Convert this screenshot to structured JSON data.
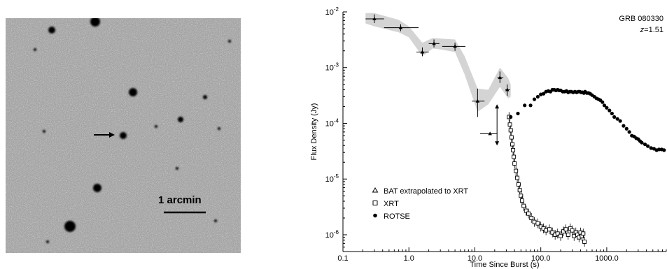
{
  "left_image": {
    "scale_bar_label": "1 arcmin"
  },
  "chart_data": {
    "type": "scatter",
    "title": "",
    "annotation": [
      "GRB 080330",
      "z=1.51"
    ],
    "xlabel": "Time Since Burst (s)",
    "ylabel": "Flux Density (Jy)",
    "xscale": "log",
    "yscale": "log",
    "xlim": [
      0.1,
      8000
    ],
    "ylim": [
      5e-07,
      0.01
    ],
    "x_tick_labels": [
      "0.1",
      "1.0",
      "10.0",
      "100.0",
      "1000.0"
    ],
    "x_tick_values": [
      0.1,
      1,
      10,
      100,
      1000
    ],
    "y_tick_labels": [
      "10^-6",
      "10^-5",
      "10^-4",
      "10^-3",
      "10^-2"
    ],
    "y_tick_values": [
      1e-06,
      1e-05,
      0.0001,
      0.001,
      0.01
    ],
    "legend": {
      "position": "bottom-left",
      "entries": [
        {
          "marker": "open-triangle",
          "label": "BAT extrapolated to XRT"
        },
        {
          "marker": "open-square",
          "label": "XRT"
        },
        {
          "marker": "filled-circle",
          "label": "ROTSE"
        }
      ]
    },
    "bat_band": {
      "x": [
        0.22,
        0.3,
        0.7,
        1.0,
        1.6,
        2.3,
        3.2,
        5.0,
        7.0,
        11.0,
        16.0,
        24.0,
        32.0,
        35.0
      ],
      "y_upper": [
        0.0095,
        0.0095,
        0.0072,
        0.0055,
        0.0028,
        0.0034,
        0.0033,
        0.0032,
        0.0016,
        0.00042,
        0.0004,
        0.001,
        0.00065,
        0.0005
      ],
      "y_lower": [
        0.0062,
        0.0055,
        0.0043,
        0.0035,
        0.0016,
        0.0022,
        0.0021,
        0.0019,
        0.00075,
        0.00016,
        0.00022,
        0.00045,
        0.00028,
        0.0003
      ]
    },
    "bat_points": [
      {
        "x": 0.3,
        "y": 0.0075,
        "xerr": [
          0.22,
          0.42
        ],
        "yerr": [
          0.0063,
          0.009
        ]
      },
      {
        "x": 0.75,
        "y": 0.0052,
        "xerr": [
          0.42,
          1.4
        ],
        "yerr": [
          0.0045,
          0.006
        ]
      },
      {
        "x": 1.6,
        "y": 0.0019,
        "xerr": [
          1.3,
          2.0
        ],
        "yerr": [
          0.0016,
          0.0023
        ]
      },
      {
        "x": 2.4,
        "y": 0.0027,
        "xerr": [
          2.0,
          2.9
        ],
        "yerr": [
          0.0023,
          0.0032
        ]
      },
      {
        "x": 5.0,
        "y": 0.0024,
        "xerr": [
          3.2,
          7.2
        ],
        "yerr": [
          0.002,
          0.0028
        ]
      },
      {
        "x": 11.0,
        "y": 0.00025,
        "xerr": [
          9.0,
          14.0
        ],
        "yerr": [
          0.00013,
          0.00042
        ]
      },
      {
        "x": 24.0,
        "y": 0.00066,
        "xerr": [
          22.0,
          27.0
        ],
        "yerr": [
          0.00053,
          0.00085
        ]
      },
      {
        "x": 31.0,
        "y": 0.0004,
        "xerr": [
          29.0,
          34.0
        ],
        "yerr": [
          0.00031,
          0.0005
        ]
      }
    ],
    "bat_limit": {
      "x": 17.0,
      "y": 6.5e-05,
      "xerr": [
        12.0,
        22.0
      ],
      "arrow_top": 0.00022,
      "arrow_bottom": 4e-05
    },
    "xrt_points": {
      "x": [
        33,
        34,
        35,
        36,
        37,
        38,
        39,
        40,
        42,
        44,
        46,
        48,
        50,
        52,
        55,
        60,
        65,
        72,
        80,
        90,
        100,
        110,
        120,
        135,
        150,
        165,
        180,
        200,
        220,
        240,
        260,
        280,
        300,
        320,
        340,
        360,
        380,
        400,
        420,
        440,
        460
      ],
      "y": [
        0.00013,
        9.5e-05,
        7.5e-05,
        5.6e-05,
        4.2e-05,
        3.3e-05,
        2.5e-05,
        1.9e-05,
        1.4e-05,
        1.05e-05,
        8e-06,
        6.3e-06,
        5e-06,
        4.1e-06,
        3.3e-06,
        2.7e-06,
        2.4e-06,
        2e-06,
        1.7e-06,
        1.6e-06,
        1.4e-06,
        1.3e-06,
        1.2e-06,
        1.25e-06,
        1.1e-06,
        1e-06,
        1.05e-06,
        9.5e-07,
        1.15e-06,
        1.25e-06,
        1e-06,
        1.3e-06,
        1.2e-06,
        9.5e-07,
        1.1e-06,
        1e-06,
        9e-07,
        1.1e-06,
        9.5e-07,
        1.05e-06,
        7.5e-07
      ]
    },
    "rotse_points": {
      "x": [
        35,
        45,
        57,
        70,
        80,
        90,
        100,
        110,
        120,
        130,
        140,
        150,
        160,
        170,
        180,
        190,
        200,
        215,
        230,
        245,
        260,
        275,
        290,
        310,
        330,
        350,
        370,
        390,
        410,
        430,
        450,
        470,
        500,
        530,
        560,
        600,
        650,
        700,
        750,
        800,
        860,
        920,
        1000,
        1100,
        1200,
        1300,
        1450,
        1600,
        1800,
        2000,
        2200,
        2400,
        2600,
        2800,
        3000,
        3200,
        3400,
        3800,
        4200,
        4700,
        5200,
        5700,
        6200,
        6800,
        7400
      ],
      "y": [
        0.00013,
        0.00015,
        0.00021,
        0.00021,
        0.00027,
        0.0003,
        0.00033,
        0.00034,
        0.00037,
        0.00038,
        0.00037,
        0.0004,
        0.0004,
        0.00039,
        0.0004,
        0.00039,
        0.00039,
        0.00037,
        0.00037,
        0.00038,
        0.00036,
        0.00037,
        0.00037,
        0.00036,
        0.00037,
        0.00036,
        0.00037,
        0.00037,
        0.00036,
        0.00036,
        0.00035,
        0.00037,
        0.00035,
        0.00035,
        0.00034,
        0.00032,
        0.0003,
        0.00028,
        0.00027,
        0.00026,
        0.00024,
        0.00021,
        0.00019,
        0.00017,
        0.00015,
        0.00013,
        0.00012,
        0.00011,
        9e-05,
        8e-05,
        7e-05,
        6e-05,
        5.8e-05,
        5.4e-05,
        5.2e-05,
        4.8e-05,
        4.5e-05,
        4.2e-05,
        3.9e-05,
        3.6e-05,
        3.5e-05,
        3.3e-05,
        3.4e-05,
        3.4e-05,
        3.3e-05
      ]
    }
  }
}
